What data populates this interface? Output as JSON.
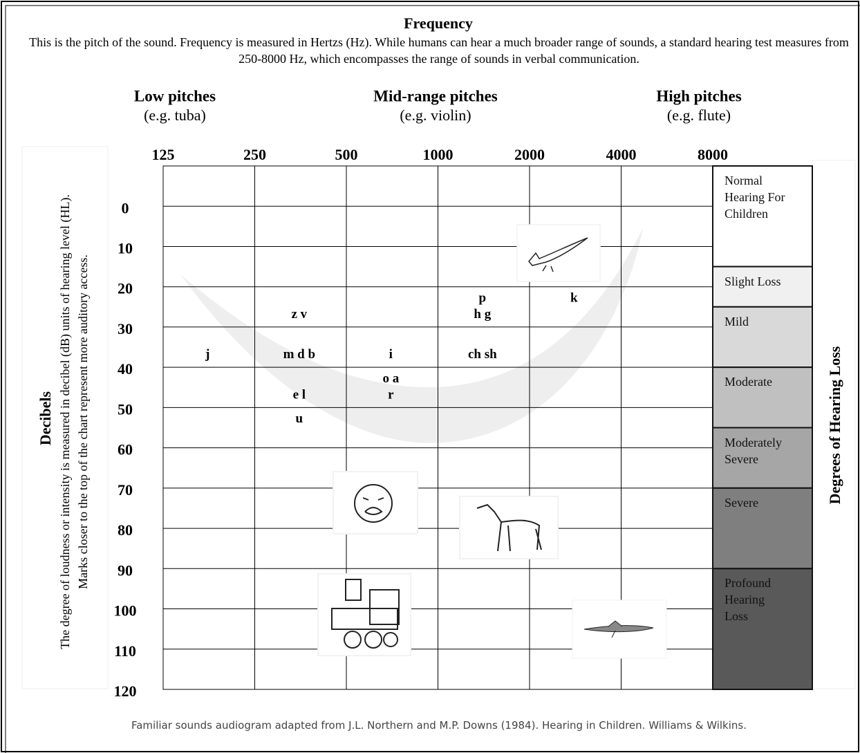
{
  "chart_data": {
    "type": "audiogram",
    "title": "Frequency",
    "subtitle": "This is the pitch of the sound.  Frequency is measured in Hertzs (Hz). While humans can hear a much broader range of sounds, a standard hearing test measures from 250-8000 Hz, which encompasses the range of sounds in verbal communication.",
    "pitch_groups": [
      {
        "name": "Low pitches",
        "example": "(e.g. tuba)"
      },
      {
        "name": "Mid-range pitches",
        "example": "(e.g. violin)"
      },
      {
        "name": "High pitches",
        "example": "(e.g. flute)"
      }
    ],
    "y_label": "Decibels",
    "y_description": [
      "The degree of loudness or intensity is measured in decibel (dB) units of hearing level (HL).",
      "Marks closer to the top of the chart represent more auditory access."
    ],
    "xscale": "log",
    "xlim": [
      125,
      8000
    ],
    "xticks": [
      125,
      250,
      500,
      1000,
      2000,
      4000,
      8000
    ],
    "ylim": [
      -10,
      120
    ],
    "yticks": [
      0,
      10,
      20,
      30,
      40,
      50,
      60,
      70,
      80,
      90,
      100,
      110,
      120
    ],
    "grid": true,
    "sounds": {
      "names": [
        "z v",
        "j",
        "m d b",
        "e l",
        "u",
        "i",
        "o a",
        "r",
        "p",
        "h g",
        "ch sh",
        "k"
      ],
      "x": [
        350,
        175,
        350,
        350,
        350,
        700,
        700,
        700,
        1400,
        1400,
        1400,
        2800
      ],
      "y": [
        27,
        37,
        37,
        47,
        53,
        37,
        43,
        47,
        23,
        27,
        37,
        23
      ]
    },
    "bands_title": "Degrees of Hearing Loss",
    "bands": [
      {
        "label": "Normal Hearing For Children",
        "from": -10,
        "to": 15,
        "color": "#ffffff"
      },
      {
        "label": "Slight Loss",
        "from": 15,
        "to": 25,
        "color": "#f0f0f0"
      },
      {
        "label": "Mild",
        "from": 25,
        "to": 40,
        "color": "#d9d9d9"
      },
      {
        "label": "Moderate",
        "from": 40,
        "to": 55,
        "color": "#c0c0c0"
      },
      {
        "label": "Moderately Severe",
        "from": 55,
        "to": 70,
        "color": "#a6a6a6"
      },
      {
        "label": "Severe",
        "from": 70,
        "to": 90,
        "color": "#7f7f7f"
      },
      {
        "label": "Profound Hearing Loss",
        "from": 90,
        "to": 120,
        "color": "#595959"
      }
    ],
    "caption": "Familiar sounds audiogram adapted from J.L. Northern and M.P. Downs (1984). Hearing in Children. Williams & Wilkins."
  }
}
